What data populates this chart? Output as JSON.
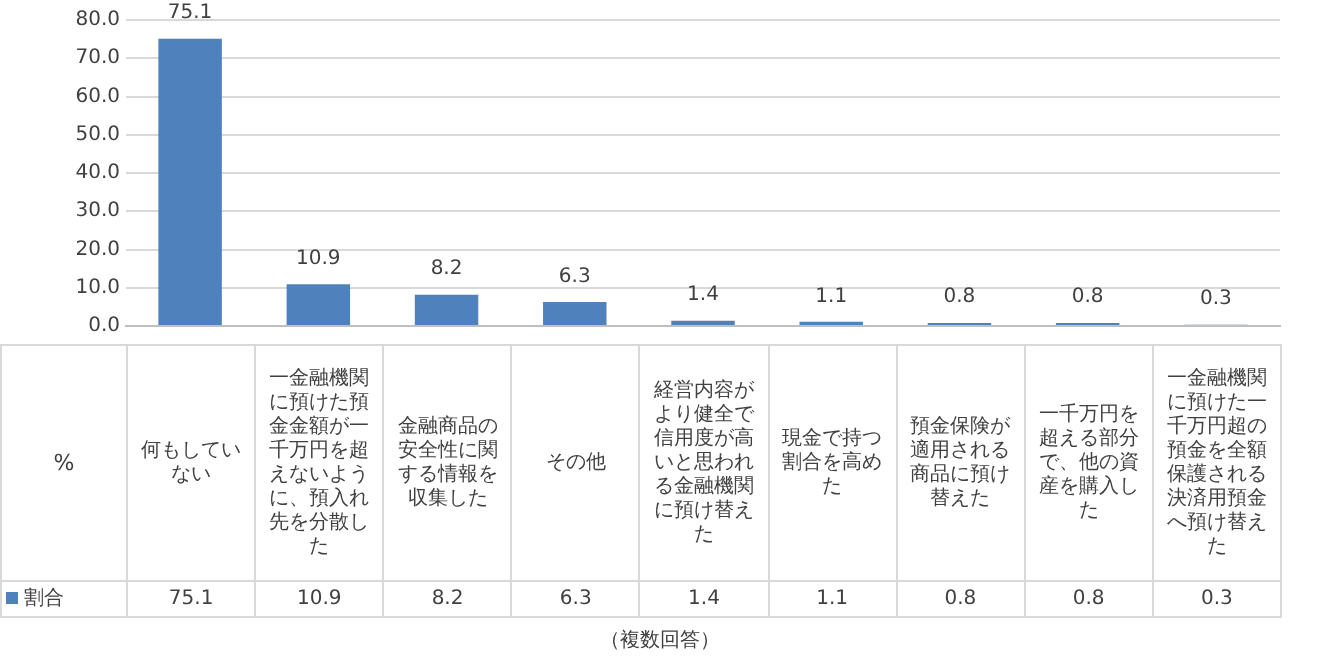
{
  "chart_data": {
    "type": "bar",
    "categories": [
      "何もしていない",
      "一金融機関に預けた預金金額が一千万円を超えないように、預入れ先を分散した",
      "金融商品の安全性に関する情報を収集した",
      "その他",
      "経営内容がより健全で信用度が高いと思われる金融機関に預け替えた",
      "現金で持つ割合を高めた",
      "預金保険が適用される商品に預け替えた",
      "一千万円を超える部分で、他の資産を購入した",
      "一金融機関に預けた一千万円超の預金を全額保護される決済用預金へ預け替えた"
    ],
    "series": [
      {
        "name": "割合",
        "color": "#4f81bd",
        "values": [
          75.1,
          10.9,
          8.2,
          6.3,
          1.4,
          1.1,
          0.8,
          0.8,
          0.3
        ]
      }
    ],
    "ylabel": "%",
    "ylim": [
      0,
      80
    ],
    "yticks": [
      {
        "value": 0,
        "label": "0.0"
      },
      {
        "value": 10,
        "label": "10.0"
      },
      {
        "value": 20,
        "label": "20.0"
      },
      {
        "value": 30,
        "label": "30.0"
      },
      {
        "value": 40,
        "label": "40.0"
      },
      {
        "value": 50,
        "label": "50.0"
      },
      {
        "value": 60,
        "label": "60.0"
      },
      {
        "value": 70,
        "label": "70.0"
      },
      {
        "value": 80,
        "label": "80.0"
      }
    ],
    "grid": "y",
    "legend": "bottom",
    "data_labels": true,
    "annotations": [
      "（複数回答）",
      "75.1",
      "10.9",
      "8.2",
      "6.3",
      "1.4",
      "1.1",
      "0.8",
      "0.8",
      "0.3"
    ]
  }
}
